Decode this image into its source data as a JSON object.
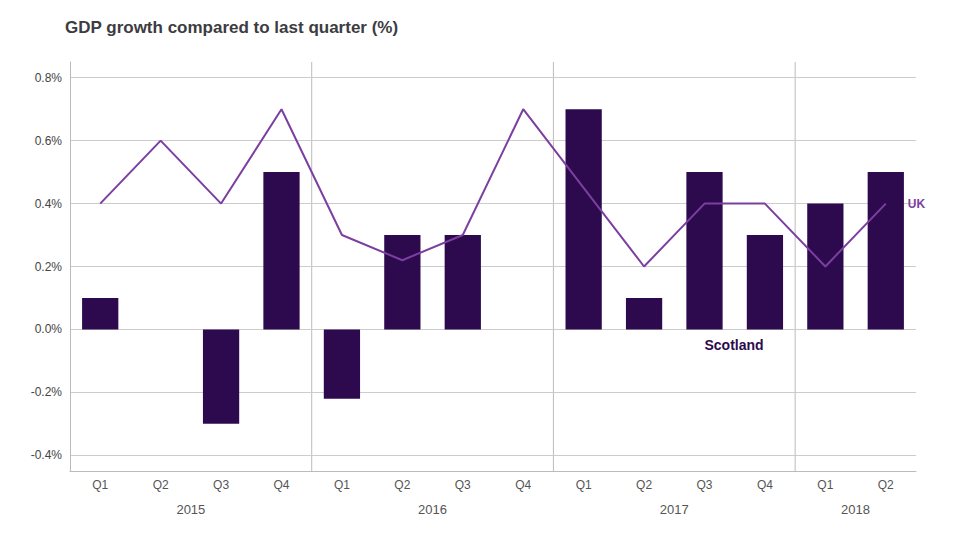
{
  "chart_data": {
    "type": "bar",
    "title": "GDP growth compared to last quarter (%)",
    "categories": [
      "Q1",
      "Q2",
      "Q3",
      "Q4",
      "Q1",
      "Q2",
      "Q3",
      "Q4",
      "Q1",
      "Q2",
      "Q3",
      "Q4",
      "Q1",
      "Q2"
    ],
    "groups": [
      "2015",
      "2016",
      "2017",
      "2018"
    ],
    "series": [
      {
        "name": "Scotland",
        "type": "bar",
        "color": "#2d0a4e",
        "values": [
          0.1,
          0.0,
          -0.3,
          0.5,
          -0.22,
          0.3,
          0.3,
          0.0,
          0.7,
          0.1,
          0.5,
          0.3,
          0.4,
          0.5
        ]
      },
      {
        "name": "UK",
        "type": "line",
        "color": "#7b3fa0",
        "values": [
          0.4,
          0.6,
          0.4,
          0.7,
          0.3,
          0.22,
          0.3,
          0.7,
          0.45,
          0.2,
          0.4,
          0.4,
          0.2,
          0.4
        ]
      }
    ],
    "ylim": [
      -0.45,
      0.85
    ],
    "yticks": [
      {
        "value": -0.4,
        "label": "-0.4%"
      },
      {
        "value": -0.2,
        "label": "-0.2%"
      },
      {
        "value": 0.0,
        "label": "0.0%"
      },
      {
        "value": 0.2,
        "label": "0.2%"
      },
      {
        "value": 0.4,
        "label": "0.4%"
      },
      {
        "value": 0.6,
        "label": "0.6%"
      },
      {
        "value": 0.8,
        "label": "0.8%"
      }
    ],
    "grid": true
  }
}
